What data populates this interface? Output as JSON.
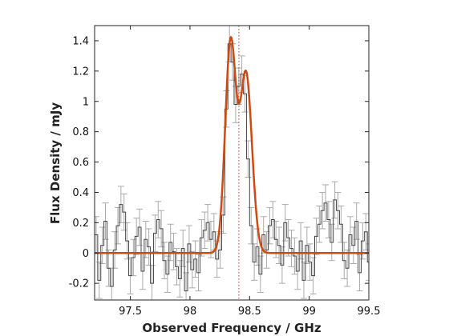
{
  "chart_data": {
    "type": "line",
    "xlabel": "Observed Frequency / GHz",
    "ylabel": "Flux Density / mJy",
    "xlim": [
      97.2,
      99.5
    ],
    "ylim": [
      -0.31,
      1.5
    ],
    "grid": false,
    "x_ticks": [
      97.5,
      98,
      98.5,
      99,
      99.5
    ],
    "x_tick_labels": [
      "97.5",
      "98",
      "98.5",
      "99",
      "99.5"
    ],
    "y_ticks": [
      -0.2,
      0,
      0.2,
      0.4,
      0.6,
      0.8,
      1.0,
      1.2,
      1.4
    ],
    "y_tick_labels": [
      "-0.2",
      "0",
      "0.2",
      "0.4",
      "0.6",
      "0.8",
      "1",
      "1.2",
      "1.4"
    ],
    "reference_line_x": 98.41,
    "colors": {
      "data": "#444444",
      "errorbar": "#aaaaaa",
      "fit": "#d04a10",
      "reference_line": "#c0392b"
    },
    "series": [
      {
        "kind": "step-with-errorbars",
        "x": [
          97.2,
          97.226,
          97.252,
          97.278,
          97.304,
          97.33,
          97.356,
          97.382,
          97.408,
          97.434,
          97.46,
          97.486,
          97.512,
          97.538,
          97.564,
          97.59,
          97.616,
          97.642,
          97.668,
          97.694,
          97.72,
          97.746,
          97.772,
          97.798,
          97.824,
          97.85,
          97.876,
          97.902,
          97.928,
          97.954,
          97.98,
          98.006,
          98.032,
          98.058,
          98.084,
          98.11,
          98.136,
          98.162,
          98.188,
          98.214,
          98.24,
          98.266,
          98.292,
          98.318,
          98.344,
          98.37,
          98.396,
          98.422,
          98.448,
          98.474,
          98.5,
          98.526,
          98.552,
          98.578,
          98.604,
          98.63,
          98.656,
          98.682,
          98.708,
          98.734,
          98.76,
          98.786,
          98.812,
          98.838,
          98.864,
          98.89,
          98.916,
          98.942,
          98.968,
          98.994,
          99.02,
          99.046,
          99.072,
          99.098,
          99.124,
          99.15,
          99.176,
          99.202,
          99.228,
          99.254,
          99.28,
          99.306,
          99.332,
          99.358,
          99.384,
          99.41,
          99.436,
          99.462,
          99.488
        ],
        "y": [
          0.12,
          -0.18,
          0.05,
          0.21,
          -0.1,
          -0.22,
          0.02,
          0.18,
          0.32,
          0.27,
          0.08,
          -0.15,
          -0.03,
          0.11,
          0.17,
          -0.12,
          0.09,
          0.04,
          -0.2,
          0.13,
          0.22,
          0.16,
          -0.05,
          -0.14,
          0.07,
          0.01,
          -0.09,
          -0.17,
          0.03,
          -0.25,
          0.06,
          -0.11,
          -0.04,
          -0.13,
          0.1,
          0.15,
          0.2,
          0.09,
          0.14,
          -0.04,
          0.02,
          0.25,
          0.95,
          1.38,
          1.26,
          0.98,
          1.1,
          1.18,
          1.05,
          0.62,
          0.18,
          -0.06,
          0.04,
          -0.14,
          0.12,
          0.02,
          0.18,
          0.22,
          0.09,
          0.05,
          -0.08,
          0.2,
          0.1,
          0.03,
          -0.02,
          -0.12,
          0.08,
          -0.18,
          0.05,
          -0.06,
          -0.15,
          0.11,
          0.19,
          0.28,
          0.33,
          0.22,
          0.07,
          0.35,
          0.28,
          0.19,
          -0.05,
          -0.1,
          0.12,
          0.05,
          0.21,
          -0.13,
          0.08,
          0.14,
          -0.06
        ],
        "errors": [
          0.12,
          0.12,
          0.12,
          0.12,
          0.12,
          0.12,
          0.12,
          0.12,
          0.12,
          0.12,
          0.12,
          0.12,
          0.12,
          0.12,
          0.12,
          0.12,
          0.12,
          0.12,
          0.12,
          0.12,
          0.12,
          0.12,
          0.12,
          0.12,
          0.12,
          0.12,
          0.12,
          0.12,
          0.12,
          0.12,
          0.12,
          0.12,
          0.12,
          0.12,
          0.12,
          0.12,
          0.12,
          0.12,
          0.12,
          0.12,
          0.12,
          0.12,
          0.12,
          0.12,
          0.12,
          0.12,
          0.12,
          0.12,
          0.12,
          0.12,
          0.12,
          0.12,
          0.12,
          0.12,
          0.12,
          0.12,
          0.12,
          0.12,
          0.12,
          0.12,
          0.12,
          0.12,
          0.12,
          0.12,
          0.12,
          0.12,
          0.12,
          0.12,
          0.12,
          0.12,
          0.12,
          0.12,
          0.12,
          0.12,
          0.12,
          0.12,
          0.12,
          0.12,
          0.12,
          0.12,
          0.12,
          0.12,
          0.12,
          0.12,
          0.12,
          0.12,
          0.12,
          0.12,
          0.12
        ]
      },
      {
        "kind": "model-fit",
        "components": [
          {
            "center": 98.34,
            "amplitude": 1.38,
            "sigma": 0.045
          },
          {
            "center": 98.47,
            "amplitude": 1.18,
            "sigma": 0.05
          }
        ],
        "x_range": [
          97.2,
          99.5
        ]
      }
    ]
  }
}
